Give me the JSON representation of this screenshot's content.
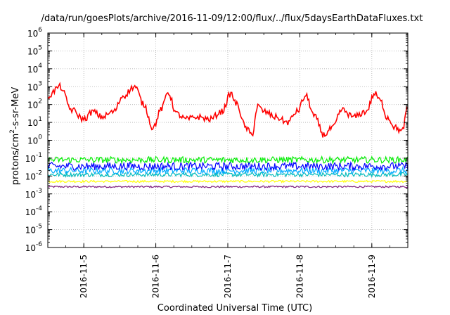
{
  "chart_data": {
    "type": "line",
    "title": "/data/run/goesPlots/archive/2016-11-09/12:00/flux/../flux/5daysEarthDataFluxes.txt",
    "xlabel": "Coordinated Universal Time (UTC)",
    "ylabel_parts": [
      "protons/cm",
      "2",
      "-s-sr-MeV"
    ],
    "yscale": "log",
    "ylim": [
      1e-06,
      1000000.0
    ],
    "xlim": [
      "2016-11-04 12:00",
      "2016-11-09 12:00"
    ],
    "grid": true,
    "x_ticks": [
      "2016-11-5",
      "2016-11-6",
      "2016-11-7",
      "2016-11-8",
      "2016-11-9"
    ],
    "y_ticks": [
      {
        "base": "10",
        "exp": "-6"
      },
      {
        "base": "10",
        "exp": "-5"
      },
      {
        "base": "10",
        "exp": "-4"
      },
      {
        "base": "10",
        "exp": "-3"
      },
      {
        "base": "10",
        "exp": "-2"
      },
      {
        "base": "10",
        "exp": "-1"
      },
      {
        "base": "10",
        "exp": "0"
      },
      {
        "base": "10",
        "exp": "1"
      },
      {
        "base": "10",
        "exp": "2"
      },
      {
        "base": "10",
        "exp": "3"
      },
      {
        "base": "10",
        "exp": "4"
      },
      {
        "base": "10",
        "exp": "5"
      },
      {
        "base": "10",
        "exp": "6"
      }
    ],
    "series": [
      {
        "color": "#ff0000",
        "points": [
          [
            "2016-11-04 12:00",
            300
          ],
          [
            "2016-11-04 16:00",
            1000
          ],
          [
            "2016-11-04 20:00",
            50
          ],
          [
            "2016-11-05 00:00",
            15
          ],
          [
            "2016-11-05 03:00",
            40
          ],
          [
            "2016-11-05 06:00",
            20
          ],
          [
            "2016-11-05 10:00",
            40
          ],
          [
            "2016-11-05 13:00",
            300
          ],
          [
            "2016-11-05 17:00",
            1000
          ],
          [
            "2016-11-05 20:00",
            100
          ],
          [
            "2016-11-05 23:00",
            5
          ],
          [
            "2016-11-06 02:00",
            60
          ],
          [
            "2016-11-06 04:00",
            500
          ],
          [
            "2016-11-06 07:00",
            30
          ],
          [
            "2016-11-06 10:00",
            15
          ],
          [
            "2016-11-06 14:00",
            20
          ],
          [
            "2016-11-06 18:00",
            15
          ],
          [
            "2016-11-06 22:00",
            40
          ],
          [
            "2016-11-07 01:00",
            400
          ],
          [
            "2016-11-07 03:00",
            100
          ],
          [
            "2016-11-07 06:00",
            5
          ],
          [
            "2016-11-07 08:00",
            2
          ],
          [
            "2016-11-07 10:00",
            80
          ],
          [
            "2016-11-07 12:00",
            40
          ],
          [
            "2016-11-07 16:00",
            20
          ],
          [
            "2016-11-07 20:00",
            10
          ],
          [
            "2016-11-07 23:00",
            40
          ],
          [
            "2016-11-08 02:00",
            300
          ],
          [
            "2016-11-08 05:00",
            20
          ],
          [
            "2016-11-08 08:00",
            2
          ],
          [
            "2016-11-08 11:00",
            5
          ],
          [
            "2016-11-08 14:00",
            50
          ],
          [
            "2016-11-08 18:00",
            20
          ],
          [
            "2016-11-08 22:00",
            40
          ],
          [
            "2016-11-09 01:00",
            400
          ],
          [
            "2016-11-09 03:00",
            150
          ],
          [
            "2016-11-09 05:00",
            20
          ],
          [
            "2016-11-09 08:00",
            5
          ],
          [
            "2016-11-09 10:00",
            3
          ],
          [
            "2016-11-09 12:00",
            60
          ]
        ]
      },
      {
        "color": "#00ee00",
        "level": 0.08,
        "spread": 0.18
      },
      {
        "color": "#0000ff",
        "level": 0.035,
        "spread": 0.22
      },
      {
        "color": "#00aaff",
        "level": 0.02,
        "spread": 0.18
      },
      {
        "color": "#00bbbb",
        "level": 0.012,
        "spread": 0.12
      },
      {
        "color": "#ffff00",
        "level": 0.005,
        "spread": 0.06
      },
      {
        "color": "#7f1f7f",
        "level": 0.0025,
        "spread": 0.05
      }
    ]
  }
}
